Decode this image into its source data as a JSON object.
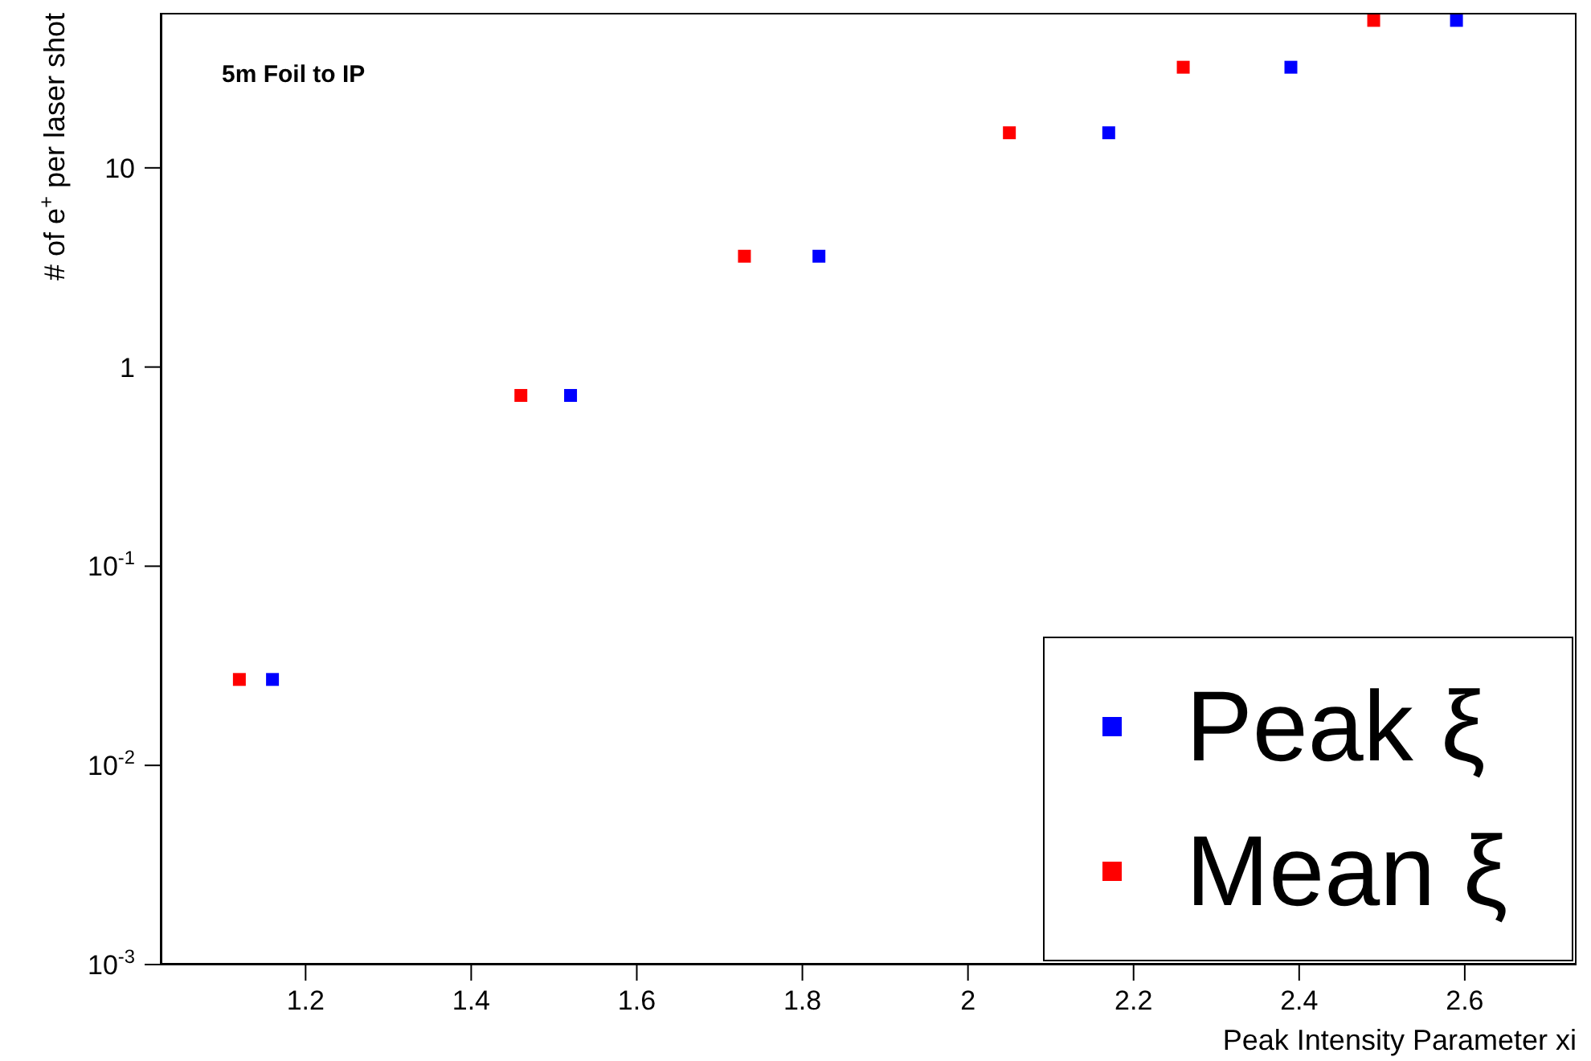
{
  "chart_data": {
    "type": "scatter",
    "xlabel": "Peak Intensity Parameter xi",
    "ylabel": "# of e$^{+}$ per laser shot",
    "annotations": [
      "5m Foil to IP"
    ],
    "log": "y",
    "marker": "square",
    "grid": false,
    "legend": "bottom right",
    "xlim": [
      1.025,
      2.735
    ],
    "xticks": [
      1.2,
      1.4,
      1.6,
      1.8,
      2,
      2.2,
      2.4,
      2.6
    ],
    "ylim": [
      0.001,
      60
    ],
    "yticks": [
      {
        "value": 0.001,
        "label": "10$^{-3}$"
      },
      {
        "value": 0.01,
        "label": "10$^{-2}$"
      },
      {
        "value": 0.1,
        "label": "10$^{-1}$"
      },
      1,
      10
    ],
    "series": [
      {
        "name": "Peak ξ",
        "color": "#0000ff",
        "x": [
          1.16,
          1.52,
          1.82,
          2.17,
          2.39,
          2.59
        ],
        "values": [
          0.027,
          0.72,
          3.6,
          15,
          32,
          55
        ]
      },
      {
        "name": "Mean ξ",
        "color": "#ff0000",
        "x": [
          1.12,
          1.46,
          1.73,
          2.05,
          2.26,
          2.49
        ],
        "values": [
          0.027,
          0.72,
          3.6,
          15,
          32,
          55
        ]
      }
    ]
  }
}
